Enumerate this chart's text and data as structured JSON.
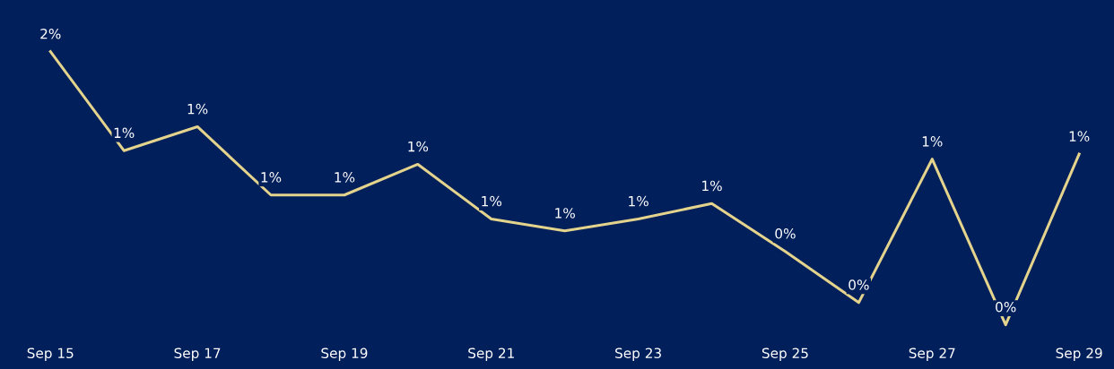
{
  "chart_data": {
    "type": "line",
    "categories": [
      "Sep 15",
      null,
      "Sep 17",
      null,
      "Sep 19",
      null,
      "Sep 21",
      null,
      "Sep 23",
      null,
      "Sep 25",
      null,
      "Sep 27",
      null,
      "Sep 29"
    ],
    "series": [
      {
        "color": "#e3d38c",
        "values": [
          1.6,
          1.02,
          1.16,
          0.76,
          0.76,
          0.94,
          0.62,
          0.55,
          0.62,
          0.71,
          0.43,
          0.13,
          0.97,
          0,
          1.0
        ],
        "value_labels": [
          "2%",
          "1%",
          "1%",
          "1%",
          "1%",
          "1%",
          "1%",
          "1%",
          "1%",
          "1%",
          "0%",
          "0%",
          "1%",
          "0%",
          "1%"
        ]
      }
    ],
    "grid": false,
    "legend": false,
    "marker": "none",
    "line_style": "solid"
  }
}
